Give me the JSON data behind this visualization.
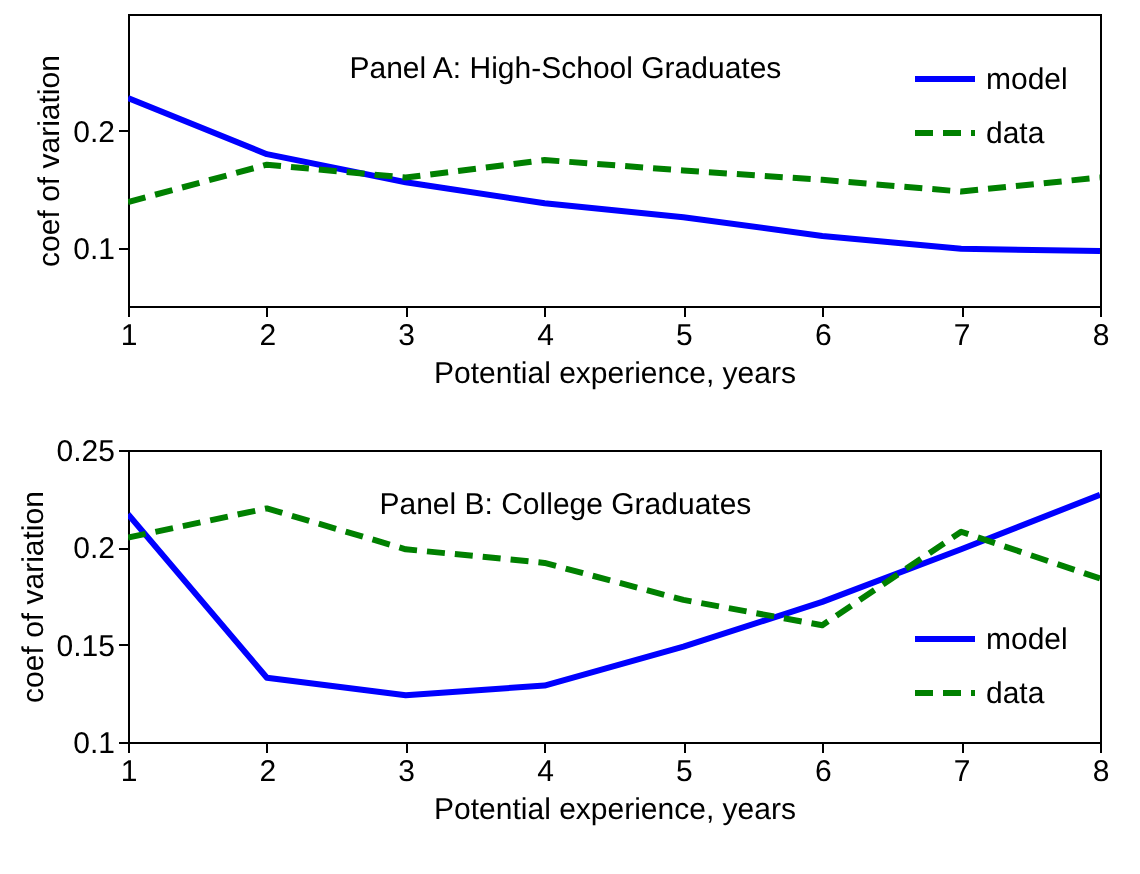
{
  "chart_data": [
    {
      "type": "line",
      "title": "Panel A: High-School Graduates",
      "xlabel": "Potential experience, years",
      "ylabel": "coef of variation",
      "x": [
        1,
        2,
        3,
        4,
        5,
        6,
        7,
        8
      ],
      "series": [
        {
          "name": "model",
          "color": "#0000ff",
          "line_style": "solid",
          "values": [
            0.228,
            0.18,
            0.156,
            0.138,
            0.126,
            0.11,
            0.099,
            0.097
          ]
        },
        {
          "name": "data",
          "color": "#008000",
          "line_style": "dashed",
          "values": [
            0.139,
            0.171,
            0.16,
            0.175,
            0.166,
            0.158,
            0.148,
            0.16
          ]
        }
      ],
      "xlim": [
        1,
        8
      ],
      "xticks": [
        1,
        2,
        3,
        4,
        5,
        6,
        7,
        8
      ],
      "ylim": [
        0.05,
        0.3
      ],
      "yticks": [
        0.1,
        0.2
      ],
      "legend": "top right"
    },
    {
      "type": "line",
      "title": "Panel B: College Graduates",
      "xlabel": "Potential experience, years",
      "ylabel": "coef of variation",
      "x": [
        1,
        2,
        3,
        4,
        5,
        6,
        7,
        8
      ],
      "series": [
        {
          "name": "model",
          "color": "#0000ff",
          "line_style": "solid",
          "values": [
            0.217,
            0.133,
            0.124,
            0.129,
            0.149,
            0.172,
            0.199,
            0.227
          ]
        },
        {
          "name": "data",
          "color": "#008000",
          "line_style": "dashed",
          "values": [
            0.205,
            0.22,
            0.199,
            0.192,
            0.173,
            0.16,
            0.208,
            0.184
          ]
        }
      ],
      "xlim": [
        1,
        8
      ],
      "xticks": [
        1,
        2,
        3,
        4,
        5,
        6,
        7,
        8
      ],
      "ylim": [
        0.1,
        0.25
      ],
      "yticks": [
        0.1,
        0.15,
        0.2,
        0.25
      ],
      "legend": "bottom right"
    }
  ]
}
